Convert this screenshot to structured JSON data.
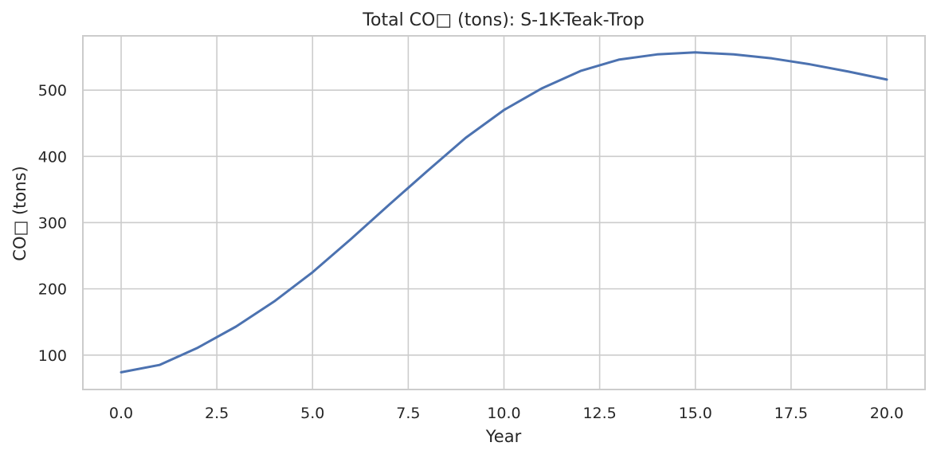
{
  "chart_data": {
    "type": "line",
    "title": "Total CO□ (tons): S-1K-Teak-Trop",
    "xlabel": "Year",
    "ylabel": "CO□ (tons)",
    "xlim": [
      -1,
      21
    ],
    "ylim": [
      48,
      582
    ],
    "xticks": [
      0,
      2.5,
      5,
      7.5,
      10,
      12.5,
      15,
      17.5,
      20
    ],
    "xtick_labels": [
      "0.0",
      "2.5",
      "5.0",
      "7.5",
      "10.0",
      "12.5",
      "15.0",
      "17.5",
      "20.0"
    ],
    "yticks": [
      100,
      200,
      300,
      400,
      500
    ],
    "ytick_labels": [
      "100",
      "200",
      "300",
      "400",
      "500"
    ],
    "grid": true,
    "legend": false,
    "series": [
      {
        "color": "#4c72b0",
        "x": [
          0,
          1,
          2,
          3,
          4,
          5,
          6,
          7,
          8,
          9,
          10,
          11,
          12,
          13,
          14,
          15,
          16,
          17,
          18,
          19,
          20
        ],
        "y": [
          74,
          85,
          111,
          143,
          181,
          225,
          275,
          327,
          378,
          428,
          470,
          503,
          529,
          546,
          554,
          557,
          554,
          548,
          539,
          528,
          516
        ]
      }
    ]
  }
}
